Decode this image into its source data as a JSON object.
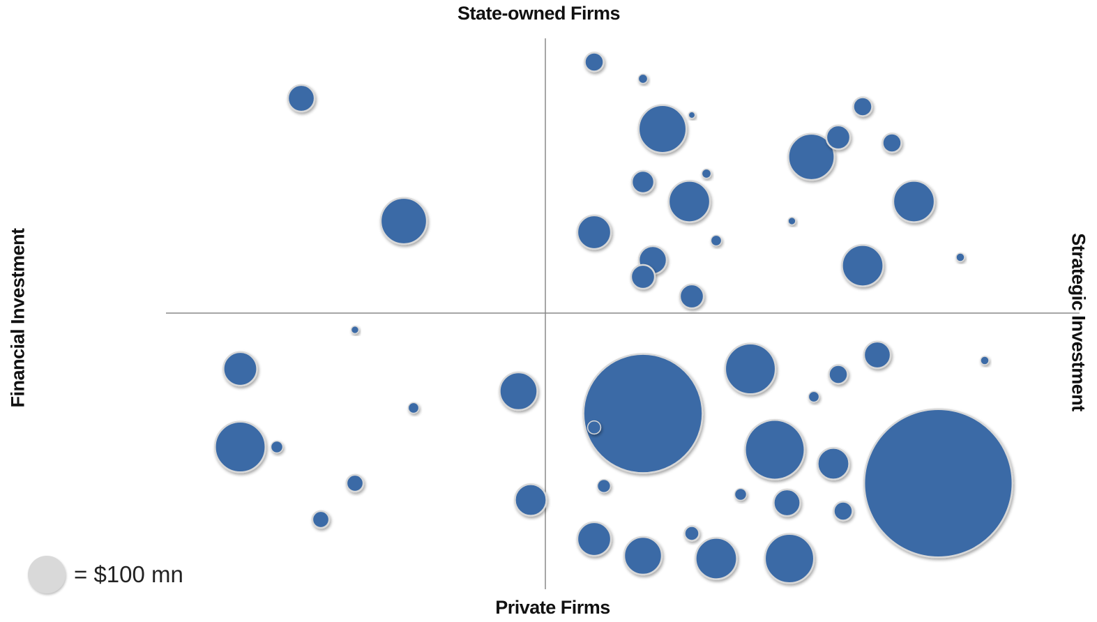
{
  "chart_data": {
    "type": "bubble",
    "axes": {
      "top": "State-owned Firms",
      "bottom": "Private Firms",
      "left": "Financial Investment",
      "right": "Strategic Investment"
    },
    "legend": {
      "label": "= $100 mn",
      "value": 100,
      "placement": "bottom-left"
    },
    "x_range": [
      -1,
      1
    ],
    "y_range": [
      -1,
      1
    ],
    "colors": {
      "bubble": "#3a6aa6",
      "outline": "#d8d8d8",
      "axis": "#888888",
      "legend": "#d9d9d9",
      "dot": "#c8c8c8"
    },
    "series": [
      {
        "name": "State-owned, financial",
        "points": [
          {
            "x": -0.5,
            "y": 0.77,
            "size": 50
          },
          {
            "x": -0.29,
            "y": 0.33,
            "size": 150
          }
        ]
      },
      {
        "name": "Private, financial",
        "points": [
          {
            "x": -0.625,
            "y": -0.2,
            "size": 80
          },
          {
            "x": -0.625,
            "y": -0.48,
            "size": 180
          },
          {
            "x": -0.055,
            "y": -0.28,
            "size": 100
          },
          {
            "x": -0.03,
            "y": -0.67,
            "size": 70
          },
          {
            "x": -0.39,
            "y": -0.61,
            "size": 20
          },
          {
            "x": -0.46,
            "y": -0.74,
            "size": 20
          },
          {
            "x": -0.55,
            "y": -0.48,
            "size": 10
          },
          {
            "x": -0.27,
            "y": -0.34,
            "size": 8
          },
          {
            "x": 0.1,
            "y": -0.41,
            "size": 12
          },
          {
            "x": -0.39,
            "y": -0.06,
            "size": 4
          }
        ]
      },
      {
        "name": "State-owned, strategic",
        "points": [
          {
            "x": 0.1,
            "y": 0.9,
            "size": 25
          },
          {
            "x": 0.2,
            "y": 0.84,
            "size": 6
          },
          {
            "x": 0.24,
            "y": 0.66,
            "size": 160
          },
          {
            "x": 0.3,
            "y": 0.71,
            "size": 3
          },
          {
            "x": 0.295,
            "y": 0.4,
            "size": 120
          },
          {
            "x": 0.2,
            "y": 0.47,
            "size": 35
          },
          {
            "x": 0.33,
            "y": 0.5,
            "size": 6
          },
          {
            "x": 0.1,
            "y": 0.29,
            "size": 80
          },
          {
            "x": 0.22,
            "y": 0.19,
            "size": 55
          },
          {
            "x": 0.2,
            "y": 0.13,
            "size": 40
          },
          {
            "x": 0.35,
            "y": 0.26,
            "size": 8
          },
          {
            "x": 0.3,
            "y": 0.06,
            "size": 40
          },
          {
            "x": 0.545,
            "y": 0.56,
            "size": 150
          },
          {
            "x": 0.6,
            "y": 0.63,
            "size": 40
          },
          {
            "x": 0.65,
            "y": 0.74,
            "size": 25
          },
          {
            "x": 0.71,
            "y": 0.61,
            "size": 25
          },
          {
            "x": 0.755,
            "y": 0.4,
            "size": 120
          },
          {
            "x": 0.65,
            "y": 0.17,
            "size": 120
          },
          {
            "x": 0.505,
            "y": 0.33,
            "size": 4
          },
          {
            "x": 0.85,
            "y": 0.2,
            "size": 5
          }
        ]
      },
      {
        "name": "Private, strategic",
        "points": [
          {
            "x": 0.2,
            "y": -0.36,
            "size": 1000
          },
          {
            "x": 0.42,
            "y": -0.2,
            "size": 180
          },
          {
            "x": 0.47,
            "y": -0.49,
            "size": 250
          },
          {
            "x": 0.55,
            "y": -0.3,
            "size": 8
          },
          {
            "x": 0.6,
            "y": -0.22,
            "size": 25
          },
          {
            "x": 0.68,
            "y": -0.15,
            "size": 50
          },
          {
            "x": 0.805,
            "y": -0.61,
            "size": 1550
          },
          {
            "x": 0.59,
            "y": -0.54,
            "size": 70
          },
          {
            "x": 0.61,
            "y": -0.71,
            "size": 25
          },
          {
            "x": 0.495,
            "y": -0.68,
            "size": 50
          },
          {
            "x": 0.1,
            "y": -0.81,
            "size": 80
          },
          {
            "x": 0.2,
            "y": -0.87,
            "size": 100
          },
          {
            "x": 0.35,
            "y": -0.88,
            "size": 120
          },
          {
            "x": 0.5,
            "y": -0.88,
            "size": 170
          },
          {
            "x": 0.3,
            "y": -0.79,
            "size": 15
          },
          {
            "x": 0.4,
            "y": -0.65,
            "size": 10
          },
          {
            "x": 0.12,
            "y": -0.62,
            "size": 12
          },
          {
            "x": 0.9,
            "y": -0.17,
            "size": 5
          }
        ]
      }
    ]
  }
}
